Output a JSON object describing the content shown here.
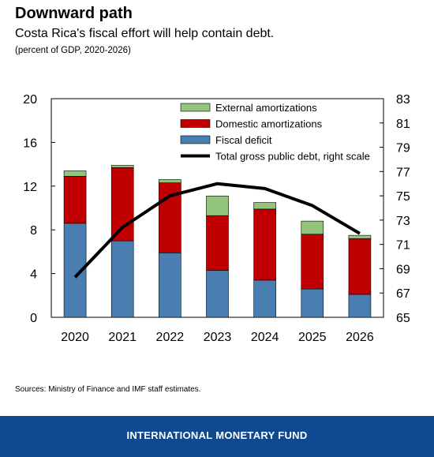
{
  "header": {
    "title": "Downward path",
    "subtitle": "Costa Rica's fiscal effort will help contain debt.",
    "units": "(percent of GDP, 2020-2026)"
  },
  "chart_data": {
    "type": "bar",
    "stacked": true,
    "categories": [
      "2020",
      "2021",
      "2022",
      "2023",
      "2024",
      "2025",
      "2026"
    ],
    "series": [
      {
        "name": "Fiscal deficit",
        "axis": "left",
        "color": "#4a7eb1",
        "values": [
          8.6,
          7.0,
          5.9,
          4.3,
          3.4,
          2.6,
          2.1
        ]
      },
      {
        "name": "Domestic amortizations",
        "axis": "left",
        "color": "#c00000",
        "values": [
          4.3,
          6.7,
          6.4,
          5.0,
          6.5,
          5.0,
          5.1
        ]
      },
      {
        "name": "External amortizations",
        "axis": "left",
        "color": "#93c47d",
        "values": [
          0.5,
          0.2,
          0.3,
          1.8,
          0.6,
          1.2,
          0.3
        ]
      },
      {
        "name": "Total gross public debt, right scale",
        "type": "line",
        "axis": "right",
        "color": "#000000",
        "values": [
          68.3,
          72.4,
          75.0,
          76.0,
          75.6,
          74.2,
          71.9
        ]
      }
    ],
    "yleft": {
      "lim": [
        0,
        20
      ],
      "ticks": [
        "0",
        "4",
        "8",
        "12",
        "16",
        "20"
      ]
    },
    "yright": {
      "lim": [
        65,
        83
      ],
      "ticks": [
        "65",
        "67",
        "69",
        "71",
        "73",
        "75",
        "77",
        "79",
        "81",
        "83"
      ]
    },
    "legend": {
      "position": "top-right",
      "entries": [
        "External amortizations",
        "Domestic amortizations",
        "Fiscal deficit",
        "Total gross public debt, right scale"
      ]
    },
    "grid": false
  },
  "source": "Sources: Ministry of Finance and IMF staff estimates.",
  "footer": {
    "label": "INTERNATIONAL MONETARY FUND",
    "color": "#0f4990"
  }
}
